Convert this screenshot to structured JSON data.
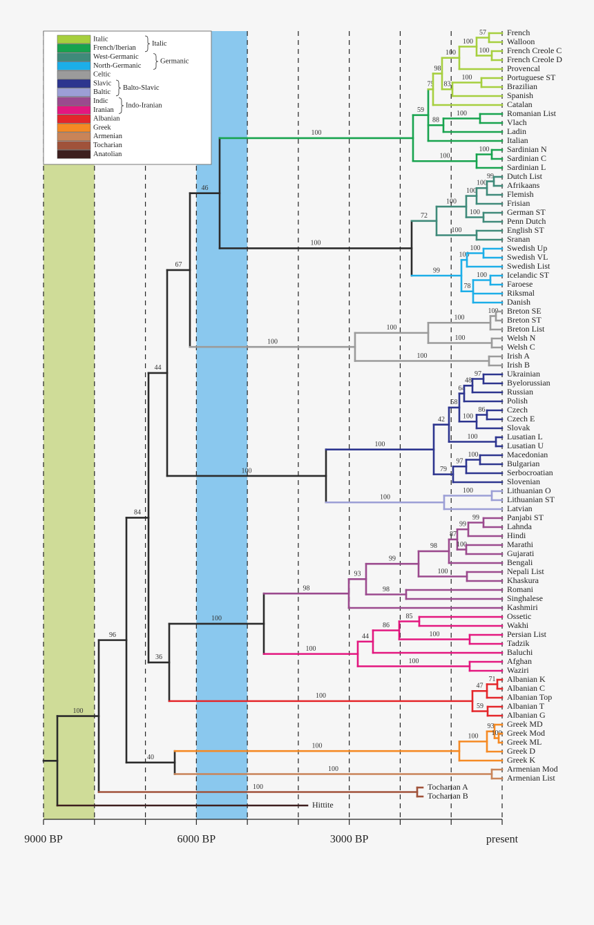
{
  "title_axis": {
    "xlim": [
      9000,
      0
    ],
    "ticks": [
      {
        "value": 9000,
        "label": "9000 BP"
      },
      {
        "value": 6000,
        "label": "6000 BP"
      },
      {
        "value": 3000,
        "label": "3000 BP"
      },
      {
        "value": 0,
        "label": "present"
      }
    ],
    "minor_ticks": [
      8000,
      7000,
      5000,
      4000,
      2000,
      1000
    ]
  },
  "bands": [
    {
      "from": 9000,
      "to": 8000,
      "color": "#cfdc98"
    },
    {
      "from": 6000,
      "to": 5000,
      "color": "#8ac8ee"
    }
  ],
  "branch_color": "#2b2b2b",
  "legend": {
    "entries": [
      {
        "label": "Italic",
        "color": "#a6cf3e"
      },
      {
        "label": "French/Iberian",
        "color": "#17a34e"
      },
      {
        "label": "West-Germanic",
        "color": "#3f8a7a"
      },
      {
        "label": "North-Germanic",
        "color": "#1caee8"
      },
      {
        "label": "Celtic",
        "color": "#9b9b9b"
      },
      {
        "label": "Slavic",
        "color": "#2d358f"
      },
      {
        "label": "Baltic",
        "color": "#9c9fd6"
      },
      {
        "label": "Indic",
        "color": "#9b4a8e"
      },
      {
        "label": "Iranian",
        "color": "#e3177f"
      },
      {
        "label": "Albanian",
        "color": "#e4262a"
      },
      {
        "label": "Greek",
        "color": "#f58a24"
      },
      {
        "label": "Armenian",
        "color": "#c98458"
      },
      {
        "label": "Tocharian",
        "color": "#a0523a"
      },
      {
        "label": "Anatolian",
        "color": "#3d1f1f"
      }
    ],
    "groups": [
      {
        "label": "Italic"
      },
      {
        "label": "Germanic"
      },
      {
        "label": "Balto-Slavic"
      },
      {
        "label": "Indo-Iranian"
      }
    ]
  },
  "leaves": [
    "French",
    "Walloon",
    "French Creole C",
    "French Creole D",
    "Provencal",
    "Portuguese ST",
    "Brazilian",
    "Spanish",
    "Catalan",
    "Romanian List",
    "Vlach",
    "Ladin",
    "Italian",
    "Sardinian N",
    "Sardinian C",
    "Sardinian L",
    "Dutch List",
    "Afrikaans",
    "Flemish",
    "Frisian",
    "German ST",
    "Penn Dutch",
    "English ST",
    "Sranan",
    "Swedish Up",
    "Swedish VL",
    "Swedish List",
    "Icelandic ST",
    "Faroese",
    "Riksmal",
    "Danish",
    "Breton SE",
    "Breton ST",
    "Breton List",
    "Welsh N",
    "Welsh C",
    "Irish A",
    "Irish B",
    "Ukrainian",
    "Byelorussian",
    "Russian",
    "Polish",
    "Czech",
    "Czech E",
    "Slovak",
    "Lusatian L",
    "Lusatian U",
    "Macedonian",
    "Bulgarian",
    "Serbocroatian",
    "Slovenian",
    "Lithuanian O",
    "Lithuanian ST",
    "Latvian",
    "Panjabi ST",
    "Lahnda",
    "Hindi",
    "Marathi",
    "Gujarati",
    "Bengali",
    "Nepali List",
    "Khaskura",
    "Romani",
    "Singhalese",
    "Kashmiri",
    "Ossetic",
    "Wakhi",
    "Persian List",
    "Tadzik",
    "Baluchi",
    "Afghan",
    "Waziri",
    "Albanian K",
    "Albanian C",
    "Albanian Top",
    "Albanian T",
    "Albanian G",
    "Greek MD",
    "Greek Mod",
    "Greek ML",
    "Greek D",
    "Greek K",
    "Armenian Mod",
    "Armenian List",
    "Tocharian A",
    "Tocharian B",
    "Hittite"
  ],
  "supports": [
    100,
    96,
    84,
    44,
    67,
    46,
    100,
    59,
    75,
    98,
    100,
    100,
    57,
    100,
    83,
    100,
    88,
    100,
    100,
    100,
    100,
    72,
    100,
    100,
    100,
    99,
    100,
    100,
    99,
    100,
    100,
    78,
    100,
    100,
    100,
    100,
    100,
    100,
    100,
    100,
    100,
    42,
    58,
    64,
    48,
    97,
    100,
    86,
    100,
    79,
    97,
    100,
    100,
    100,
    36,
    100,
    98,
    93,
    99,
    98,
    87,
    99,
    99,
    100,
    100,
    98,
    100,
    44,
    86,
    85,
    100,
    100,
    100,
    47,
    71,
    59,
    40,
    100,
    100,
    93,
    100,
    100,
    100
  ]
}
